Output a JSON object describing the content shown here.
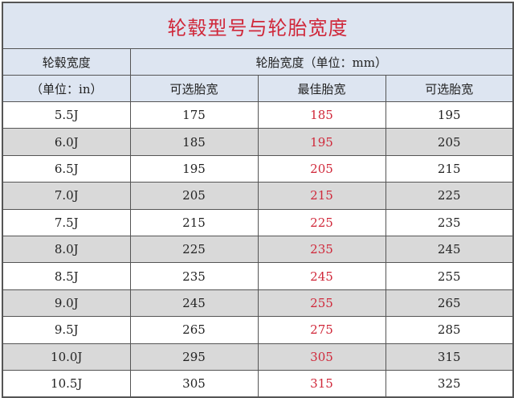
{
  "title": "轮毂型号与轮胎宽度",
  "header": {
    "rim_width": "轮毂宽度",
    "rim_unit": "（单位：in）",
    "tire_width": "轮胎宽度（单位：mm）",
    "col_optional_1": "可选胎宽",
    "col_best": "最佳胎宽",
    "col_optional_2": "可选胎宽"
  },
  "colors": {
    "title": "#d0283a",
    "best": "#d0283a",
    "header_bg": "#dde5f1",
    "alt_row_bg": "#d9d9d9"
  },
  "rows": [
    {
      "rim": "5.5J",
      "opt1": "175",
      "best": "185",
      "opt2": "195"
    },
    {
      "rim": "6.0J",
      "opt1": "185",
      "best": "195",
      "opt2": "205"
    },
    {
      "rim": "6.5J",
      "opt1": "195",
      "best": "205",
      "opt2": "215"
    },
    {
      "rim": "7.0J",
      "opt1": "205",
      "best": "215",
      "opt2": "225"
    },
    {
      "rim": "7.5J",
      "opt1": "215",
      "best": "225",
      "opt2": "235"
    },
    {
      "rim": "8.0J",
      "opt1": "225",
      "best": "235",
      "opt2": "245"
    },
    {
      "rim": "8.5J",
      "opt1": "235",
      "best": "245",
      "opt2": "255"
    },
    {
      "rim": "9.0J",
      "opt1": "245",
      "best": "255",
      "opt2": "265"
    },
    {
      "rim": "9.5J",
      "opt1": "265",
      "best": "275",
      "opt2": "285"
    },
    {
      "rim": "10.0J",
      "opt1": "295",
      "best": "305",
      "opt2": "315"
    },
    {
      "rim": "10.5J",
      "opt1": "305",
      "best": "315",
      "opt2": "325"
    }
  ]
}
